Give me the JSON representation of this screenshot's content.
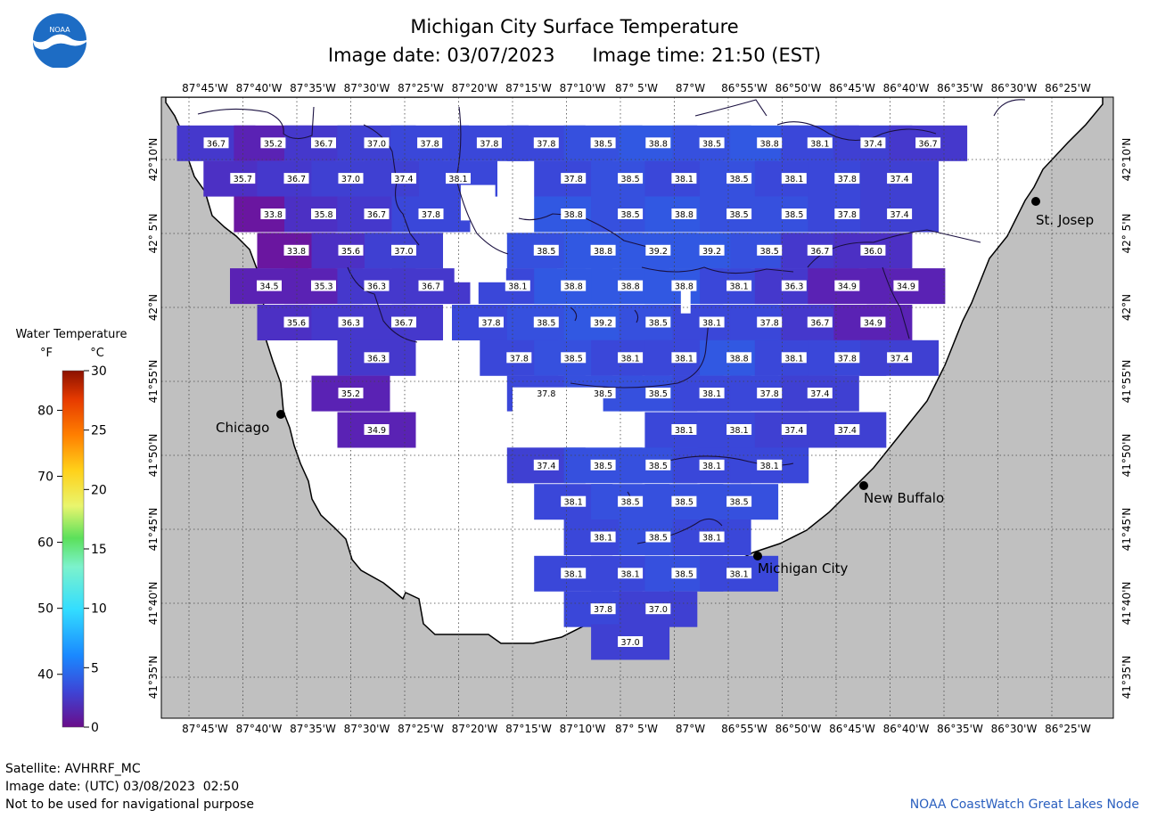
{
  "header": {
    "title": "Michigan City Surface Temperature",
    "image_date": "Image date: 03/07/2023",
    "image_time": "Image time: 21:50 (EST)"
  },
  "logo": {
    "icon": "noaa-logo-icon",
    "text": "NOAA"
  },
  "legend": {
    "title": "Water Temperature",
    "unit_f": "°F",
    "unit_c": "°C",
    "f_ticks": [
      "80",
      "70",
      "60",
      "50",
      "40"
    ],
    "c_ticks": [
      "30",
      "25",
      "20",
      "15",
      "10",
      "5",
      "0"
    ],
    "colors": [
      "#6a0d8a",
      "#3d45d6",
      "#1a88ff",
      "#33ddff",
      "#7cf2cc",
      "#5be05b",
      "#e9f56e",
      "#ffd11a",
      "#ff7f00",
      "#e63a00",
      "#8b1100"
    ]
  },
  "axes": {
    "lon_labels": [
      "87°45'W",
      "87°40'W",
      "87°35'W",
      "87°30'W",
      "87°25'W",
      "87°20'W",
      "87°15'W",
      "87°10'W",
      "87° 5'W",
      "87°W",
      "86°55'W",
      "86°50'W",
      "86°45'W",
      "86°40'W",
      "86°35'W",
      "86°30'W",
      "86°25'W"
    ],
    "lat_labels": [
      "42°10'N",
      "42° 5'N",
      "42°N",
      "41°55'N",
      "41°50'N",
      "41°45'N",
      "41°40'N",
      "41°35'N"
    ]
  },
  "places": [
    {
      "name": "Chicago"
    },
    {
      "name": "St. Josep"
    },
    {
      "name": "New Buffalo"
    },
    {
      "name": "Michigan City"
    }
  ],
  "temperature_labels": [
    {
      "v": "36.7",
      "lon": -87.708,
      "lat": 42.185
    },
    {
      "v": "35.2",
      "lon": -87.62,
      "lat": 42.185
    },
    {
      "v": "36.7",
      "lon": -87.542,
      "lat": 42.185
    },
    {
      "v": "37.0",
      "lon": -87.46,
      "lat": 42.185
    },
    {
      "v": "37.8",
      "lon": -87.378,
      "lat": 42.185
    },
    {
      "v": "37.8",
      "lon": -87.286,
      "lat": 42.185
    },
    {
      "v": "37.8",
      "lon": -87.198,
      "lat": 42.185
    },
    {
      "v": "38.5",
      "lon": -87.11,
      "lat": 42.185
    },
    {
      "v": "38.8",
      "lon": -87.025,
      "lat": 42.185
    },
    {
      "v": "38.5",
      "lon": -86.942,
      "lat": 42.185
    },
    {
      "v": "38.8",
      "lon": -86.853,
      "lat": 42.185
    },
    {
      "v": "38.1",
      "lon": -86.775,
      "lat": 42.185
    },
    {
      "v": "37.4",
      "lon": -86.693,
      "lat": 42.185
    },
    {
      "v": "36.7",
      "lon": -86.608,
      "lat": 42.185
    },
    {
      "v": "35.7",
      "lon": -87.667,
      "lat": 42.145
    },
    {
      "v": "36.7",
      "lon": -87.584,
      "lat": 42.145
    },
    {
      "v": "37.0",
      "lon": -87.5,
      "lat": 42.145
    },
    {
      "v": "37.4",
      "lon": -87.418,
      "lat": 42.145
    },
    {
      "v": "38.1",
      "lon": -87.334,
      "lat": 42.145
    },
    {
      "v": "37.8",
      "lon": -87.156,
      "lat": 42.145
    },
    {
      "v": "38.5",
      "lon": -87.068,
      "lat": 42.145
    },
    {
      "v": "38.1",
      "lon": -86.985,
      "lat": 42.145
    },
    {
      "v": "38.5",
      "lon": -86.9,
      "lat": 42.145
    },
    {
      "v": "38.1",
      "lon": -86.815,
      "lat": 42.145
    },
    {
      "v": "37.8",
      "lon": -86.733,
      "lat": 42.145
    },
    {
      "v": "37.4",
      "lon": -86.652,
      "lat": 42.145
    },
    {
      "v": "33.8",
      "lon": -87.62,
      "lat": 42.105
    },
    {
      "v": "35.8",
      "lon": -87.542,
      "lat": 42.105
    },
    {
      "v": "36.7",
      "lon": -87.46,
      "lat": 42.105
    },
    {
      "v": "37.8",
      "lon": -87.376,
      "lat": 42.105
    },
    {
      "v": "38.8",
      "lon": -87.156,
      "lat": 42.105
    },
    {
      "v": "38.5",
      "lon": -87.068,
      "lat": 42.105
    },
    {
      "v": "38.8",
      "lon": -86.985,
      "lat": 42.105
    },
    {
      "v": "38.5",
      "lon": -86.9,
      "lat": 42.105
    },
    {
      "v": "38.5",
      "lon": -86.815,
      "lat": 42.105
    },
    {
      "v": "37.8",
      "lon": -86.733,
      "lat": 42.105
    },
    {
      "v": "37.4",
      "lon": -86.652,
      "lat": 42.105
    },
    {
      "v": "33.8",
      "lon": -87.584,
      "lat": 42.064
    },
    {
      "v": "35.6",
      "lon": -87.5,
      "lat": 42.064
    },
    {
      "v": "37.0",
      "lon": -87.418,
      "lat": 42.064
    },
    {
      "v": "38.5",
      "lon": -87.198,
      "lat": 42.064
    },
    {
      "v": "38.8",
      "lon": -87.11,
      "lat": 42.064
    },
    {
      "v": "39.2",
      "lon": -87.025,
      "lat": 42.064
    },
    {
      "v": "39.2",
      "lon": -86.942,
      "lat": 42.064
    },
    {
      "v": "38.5",
      "lon": -86.853,
      "lat": 42.064
    },
    {
      "v": "36.7",
      "lon": -86.775,
      "lat": 42.064
    },
    {
      "v": "36.0",
      "lon": -86.693,
      "lat": 42.064
    },
    {
      "v": "34.5",
      "lon": -87.626,
      "lat": 42.024
    },
    {
      "v": "35.3",
      "lon": -87.542,
      "lat": 42.024
    },
    {
      "v": "36.3",
      "lon": -87.46,
      "lat": 42.024
    },
    {
      "v": "36.7",
      "lon": -87.376,
      "lat": 42.024
    },
    {
      "v": "38.1",
      "lon": -87.242,
      "lat": 42.024
    },
    {
      "v": "38.8",
      "lon": -87.156,
      "lat": 42.024
    },
    {
      "v": "38.8",
      "lon": -87.068,
      "lat": 42.024
    },
    {
      "v": "38.8",
      "lon": -86.985,
      "lat": 42.024
    },
    {
      "v": "38.1",
      "lon": -86.9,
      "lat": 42.024
    },
    {
      "v": "36.3",
      "lon": -86.815,
      "lat": 42.024
    },
    {
      "v": "34.9",
      "lon": -86.733,
      "lat": 42.024
    },
    {
      "v": "34.9",
      "lon": -86.642,
      "lat": 42.024
    },
    {
      "v": "35.6",
      "lon": -87.584,
      "lat": 41.983
    },
    {
      "v": "36.3",
      "lon": -87.5,
      "lat": 41.983
    },
    {
      "v": "36.7",
      "lon": -87.418,
      "lat": 41.983
    },
    {
      "v": "37.8",
      "lon": -87.283,
      "lat": 41.983
    },
    {
      "v": "38.5",
      "lon": -87.198,
      "lat": 41.983
    },
    {
      "v": "39.2",
      "lon": -87.11,
      "lat": 41.983
    },
    {
      "v": "38.5",
      "lon": -87.025,
      "lat": 41.983
    },
    {
      "v": "38.1",
      "lon": -86.942,
      "lat": 41.983
    },
    {
      "v": "37.8",
      "lon": -86.853,
      "lat": 41.983
    },
    {
      "v": "36.7",
      "lon": -86.775,
      "lat": 41.983
    },
    {
      "v": "34.9",
      "lon": -86.693,
      "lat": 41.983
    },
    {
      "v": "36.3",
      "lon": -87.46,
      "lat": 41.943
    },
    {
      "v": "37.8",
      "lon": -87.24,
      "lat": 41.943
    },
    {
      "v": "38.5",
      "lon": -87.156,
      "lat": 41.943
    },
    {
      "v": "38.1",
      "lon": -87.068,
      "lat": 41.943
    },
    {
      "v": "38.1",
      "lon": -86.985,
      "lat": 41.943
    },
    {
      "v": "38.8",
      "lon": -86.9,
      "lat": 41.943
    },
    {
      "v": "38.1",
      "lon": -86.815,
      "lat": 41.943
    },
    {
      "v": "37.8",
      "lon": -86.733,
      "lat": 41.943
    },
    {
      "v": "37.4",
      "lon": -86.652,
      "lat": 41.943
    },
    {
      "v": "35.2",
      "lon": -87.5,
      "lat": 41.903
    },
    {
      "v": "37.8",
      "lon": -87.198,
      "lat": 41.903
    },
    {
      "v": "38.5",
      "lon": -87.11,
      "lat": 41.903
    },
    {
      "v": "38.5",
      "lon": -87.025,
      "lat": 41.903
    },
    {
      "v": "38.1",
      "lon": -86.942,
      "lat": 41.903
    },
    {
      "v": "37.8",
      "lon": -86.853,
      "lat": 41.903
    },
    {
      "v": "37.4",
      "lon": -86.775,
      "lat": 41.903
    },
    {
      "v": "34.9",
      "lon": -87.46,
      "lat": 41.862
    },
    {
      "v": "38.1",
      "lon": -86.985,
      "lat": 41.862
    },
    {
      "v": "38.1",
      "lon": -86.9,
      "lat": 41.862
    },
    {
      "v": "37.4",
      "lon": -86.815,
      "lat": 41.862
    },
    {
      "v": "37.4",
      "lon": -86.733,
      "lat": 41.862
    },
    {
      "v": "37.4",
      "lon": -87.198,
      "lat": 41.822
    },
    {
      "v": "38.5",
      "lon": -87.11,
      "lat": 41.822
    },
    {
      "v": "38.5",
      "lon": -87.025,
      "lat": 41.822
    },
    {
      "v": "38.1",
      "lon": -86.942,
      "lat": 41.822
    },
    {
      "v": "38.1",
      "lon": -86.853,
      "lat": 41.822
    },
    {
      "v": "38.1",
      "lon": -87.156,
      "lat": 41.781
    },
    {
      "v": "38.5",
      "lon": -87.068,
      "lat": 41.781
    },
    {
      "v": "38.5",
      "lon": -86.985,
      "lat": 41.781
    },
    {
      "v": "38.5",
      "lon": -86.9,
      "lat": 41.781
    },
    {
      "v": "38.1",
      "lon": -87.11,
      "lat": 41.741
    },
    {
      "v": "38.5",
      "lon": -87.025,
      "lat": 41.741
    },
    {
      "v": "38.1",
      "lon": -86.942,
      "lat": 41.741
    },
    {
      "v": "38.1",
      "lon": -87.156,
      "lat": 41.7
    },
    {
      "v": "38.1",
      "lon": -87.068,
      "lat": 41.7
    },
    {
      "v": "38.5",
      "lon": -86.985,
      "lat": 41.7
    },
    {
      "v": "38.1",
      "lon": -86.9,
      "lat": 41.7
    },
    {
      "v": "37.8",
      "lon": -87.11,
      "lat": 41.66
    },
    {
      "v": "37.0",
      "lon": -87.025,
      "lat": 41.66
    },
    {
      "v": "37.0",
      "lon": -87.068,
      "lat": 41.623
    }
  ],
  "footer": {
    "satellite": "Satellite: AVHRRF_MC",
    "utc_date": "Image date: (UTC) 03/08/2023  02:50",
    "disclaimer": "Not to be used for navigational purpose",
    "credit": "NOAA CoastWatch Great Lakes Node"
  }
}
